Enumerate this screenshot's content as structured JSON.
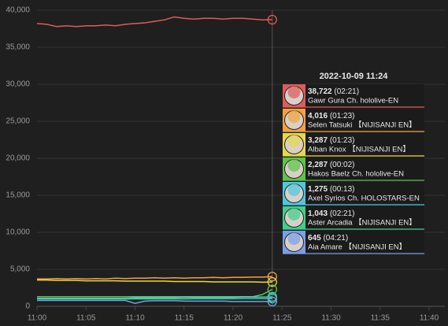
{
  "chart_data": {
    "type": "line",
    "x": [
      "11:00",
      "11:01",
      "11:02",
      "11:03",
      "11:04",
      "11:05",
      "11:06",
      "11:07",
      "11:08",
      "11:09",
      "11:10",
      "11:11",
      "11:12",
      "11:13",
      "11:14",
      "11:15",
      "11:16",
      "11:17",
      "11:18",
      "11:19",
      "11:20",
      "11:21",
      "11:22",
      "11:23",
      "11:24"
    ],
    "xlim": [
      "11:00",
      "11:40"
    ],
    "xticks": [
      "11:00",
      "11:05",
      "11:10",
      "11:15",
      "11:20",
      "11:25",
      "11:30",
      "11:35",
      "11:40"
    ],
    "ylim": [
      0,
      40000
    ],
    "yticks": [
      0,
      {
        "value": 5000,
        "label": "5,000"
      },
      {
        "value": 10000,
        "label": "10,000"
      },
      {
        "value": 15000,
        "label": "15,000"
      },
      {
        "value": 20000,
        "label": "20,000"
      },
      {
        "value": 25000,
        "label": "25,000"
      },
      {
        "value": 30000,
        "label": "30,000"
      },
      {
        "value": 35000,
        "label": "35,000"
      },
      {
        "value": 40000,
        "label": "40,000"
      }
    ],
    "grid": true,
    "series": [
      {
        "name": "Gawr Gura Ch. hololive-EN",
        "color": "#e05a5a",
        "values": [
          38200,
          38100,
          37800,
          37900,
          37800,
          37900,
          37900,
          38000,
          37900,
          38100,
          38200,
          38300,
          38500,
          38700,
          39100,
          38900,
          38800,
          38900,
          38900,
          38800,
          38900,
          38900,
          38800,
          38700,
          38722
        ]
      },
      {
        "name": "Selen Tatsuki 【NIJISANJI EN】",
        "color": "#f2a23a",
        "values": [
          3700,
          3700,
          3750,
          3700,
          3750,
          3700,
          3750,
          3700,
          3800,
          3750,
          3800,
          3800,
          3850,
          3800,
          3850,
          3800,
          3850,
          3850,
          3900,
          3850,
          3900,
          3900,
          3950,
          3950,
          4016
        ]
      },
      {
        "name": "Alban Knox 【NIJISANJI EN】",
        "color": "#e6d84a",
        "values": [
          3550,
          3550,
          3500,
          3500,
          3500,
          3450,
          3450,
          3450,
          3450,
          3400,
          3400,
          3400,
          3400,
          3400,
          3350,
          3350,
          3350,
          3350,
          3300,
          3300,
          3300,
          3300,
          3300,
          3250,
          3287
        ]
      },
      {
        "name": "Hakos Baelz Ch. hololive-EN",
        "color": "#5cc44a",
        "values": [
          1300,
          1300,
          1300,
          1300,
          1300,
          1300,
          1300,
          1300,
          1300,
          1300,
          1300,
          1300,
          1300,
          1300,
          1300,
          1300,
          1300,
          1300,
          1300,
          1300,
          1300,
          1300,
          1300,
          1600,
          2287
        ]
      },
      {
        "name": "Axel Syrios Ch. HOLOSTARS-EN",
        "color": "#4cc8e0",
        "values": [
          1100,
          1100,
          1100,
          1100,
          1100,
          1100,
          1100,
          1100,
          1100,
          1100,
          1150,
          1150,
          1150,
          1150,
          1150,
          1200,
          1200,
          1200,
          1200,
          1200,
          1200,
          1250,
          1250,
          1250,
          1275
        ]
      },
      {
        "name": "Aster Arcadia 【NIJISANJI EN】",
        "color": "#3fd08c",
        "values": [
          1000,
          1000,
          1000,
          1000,
          1000,
          1000,
          1000,
          1000,
          1000,
          1000,
          1000,
          1000,
          1000,
          1000,
          1000,
          1000,
          1020,
          1020,
          1020,
          1020,
          1020,
          1040,
          1040,
          1040,
          1043
        ]
      },
      {
        "name": "Aia Amare 【NIJISANJI EN】",
        "color": "#7b9ee8",
        "values": [
          800,
          800,
          800,
          800,
          800,
          800,
          800,
          800,
          800,
          800,
          400,
          700,
          750,
          750,
          750,
          700,
          700,
          700,
          700,
          700,
          650,
          650,
          650,
          650,
          645
        ]
      }
    ],
    "tooltip": {
      "title": "2022-10-09 11:24",
      "entries": [
        {
          "label": "38,722",
          "duration": "(02:21)"
        },
        {
          "label": "4,016",
          "duration": "(01:23)"
        },
        {
          "label": "3,287",
          "duration": "(01:23)"
        },
        {
          "label": "2,287",
          "duration": "(00:02)"
        },
        {
          "label": "1,275",
          "duration": "(00:13)"
        },
        {
          "label": "1,043",
          "duration": "(02:21)"
        },
        {
          "label": "645",
          "duration": "(04:21)"
        }
      ]
    }
  }
}
